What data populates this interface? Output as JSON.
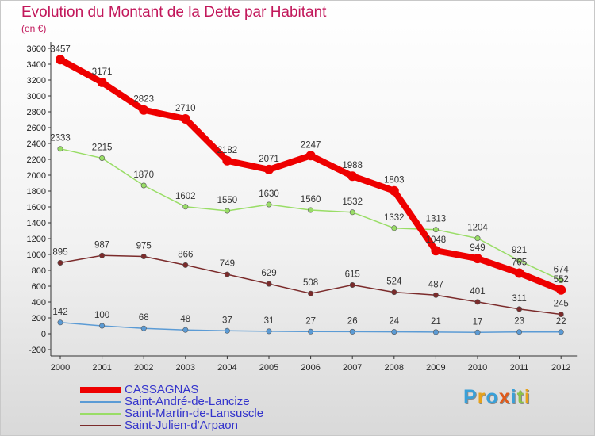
{
  "page": {
    "title": "Evolution du Montant de la Dette par Habitant",
    "unit": "(en €)"
  },
  "logo": {
    "text": "Proxiti",
    "letter_colors": [
      "#3aa0d8",
      "#e8a21a",
      "#3aa0d8",
      "#e05a1a",
      "#3aa0d8",
      "#8bc34a",
      "#e8a21a"
    ]
  },
  "chart_data": {
    "type": "line",
    "title": "Evolution du Montant de la Dette par Habitant",
    "ylabel": "(en €)",
    "xlabel": "",
    "x": [
      "2000",
      "2001",
      "2002",
      "2003",
      "2004",
      "2005",
      "2006",
      "2007",
      "2008",
      "2009",
      "2010",
      "2011",
      "2012"
    ],
    "ylim": [
      -200,
      3600
    ],
    "ytick_step": 200,
    "grid": false,
    "legend_position": "bottom-left",
    "series": [
      {
        "name": "CASSAGNAS",
        "color": "#ee0000",
        "values": [
          3457,
          3171,
          2823,
          2710,
          2182,
          2071,
          2247,
          1988,
          1803,
          1048,
          949,
          765,
          552
        ]
      },
      {
        "name": "Saint-André-de-Lancize",
        "color": "#5b9bd5",
        "values": [
          142,
          100,
          68,
          48,
          37,
          31,
          27,
          26,
          24,
          21,
          17,
          23,
          22
        ]
      },
      {
        "name": "Saint-Martin-de-Lansuscle",
        "color": "#99dd66",
        "values": [
          2333,
          2215,
          1870,
          1602,
          1550,
          1630,
          1560,
          1532,
          1332,
          1313,
          1204,
          921,
          674
        ]
      },
      {
        "name": "Saint-Julien-d'Arpaon",
        "color": "#7b2b2b",
        "values": [
          895,
          987,
          975,
          866,
          749,
          629,
          508,
          615,
          524,
          487,
          401,
          311,
          245
        ]
      }
    ]
  }
}
